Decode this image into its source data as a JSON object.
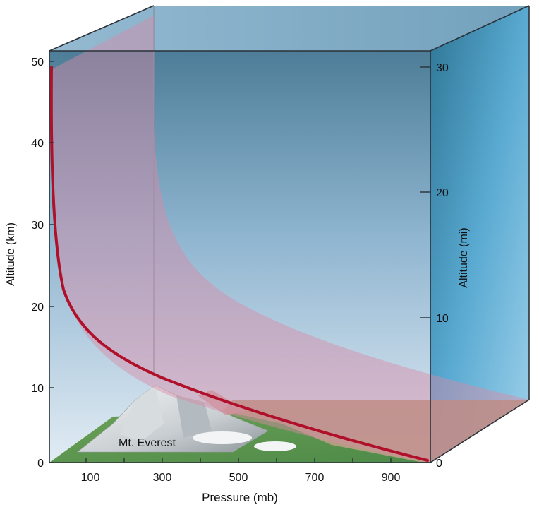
{
  "diagram": {
    "label_everest": "Mt. Everest",
    "left_axis": {
      "label": "Altitude (km)",
      "ticks": [
        "0",
        "10",
        "20",
        "30",
        "40",
        "50"
      ]
    },
    "right_axis": {
      "label": "Altitude (mi)",
      "ticks": [
        "0",
        "10",
        "20",
        "30"
      ]
    },
    "bottom_axis": {
      "label": "Pressure (mb)",
      "ticks": [
        "100",
        "300",
        "500",
        "700",
        "900"
      ]
    },
    "colors": {
      "curve": "#b0102a",
      "sky_top": "#4f7f9a",
      "sky_bottom": "#dfeaf3",
      "pink_band": "#d98aa6",
      "ground_green": "#5f9a52",
      "ground_tan": "#a9906c"
    }
  }
}
